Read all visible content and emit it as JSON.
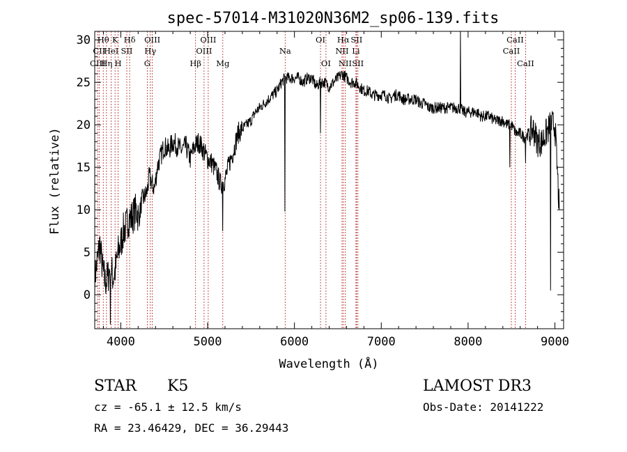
{
  "chart_data": {
    "type": "line",
    "title": "spec-57014-M31020N36M2_sp06-139.fits",
    "xlabel": "Wavelength (Å)",
    "ylabel": "Flux (relative)",
    "xlim": [
      3700,
      9100
    ],
    "ylim": [
      -4,
      31
    ],
    "xticks": [
      4000,
      5000,
      6000,
      7000,
      8000,
      9000
    ],
    "yticks": [
      0,
      5,
      10,
      15,
      20,
      25,
      30
    ],
    "grid": false,
    "series": [
      {
        "x": [
          3700,
          3730,
          3760,
          3790,
          3820,
          3850,
          3880,
          3910,
          3940,
          3970,
          4000,
          4030,
          4060,
          4090,
          4120,
          4150,
          4180,
          4210,
          4240,
          4270,
          4300,
          4330,
          4360,
          4390,
          4420,
          4450,
          4500,
          4550,
          4600,
          4650,
          4700,
          4750,
          4800,
          4850,
          4900,
          4950,
          5000,
          5050,
          5100,
          5150,
          5200,
          5250,
          5300,
          5350,
          5400,
          5450,
          5500,
          5550,
          5600,
          5650,
          5700,
          5750,
          5800,
          5850,
          5890,
          5950,
          6000,
          6050,
          6100,
          6150,
          6200,
          6250,
          6300,
          6350,
          6400,
          6450,
          6500,
          6550,
          6600,
          6650,
          6700,
          6750,
          6800,
          6850,
          6900,
          6950,
          7000,
          7050,
          7100,
          7150,
          7200,
          7250,
          7300,
          7350,
          7400,
          7450,
          7500,
          7550,
          7600,
          7650,
          7700,
          7750,
          7800,
          7850,
          7900,
          7950,
          8000,
          8050,
          8100,
          8150,
          8200,
          8250,
          8300,
          8350,
          8400,
          8450,
          8500,
          8550,
          8600,
          8650,
          8700,
          8750,
          8800,
          8850,
          8900,
          8950,
          9000,
          9050
        ],
        "values": [
          2,
          4,
          6,
          3,
          1.5,
          2,
          3.5,
          2,
          3,
          5,
          6,
          7.5,
          8,
          9,
          9,
          9.5,
          10,
          9,
          11,
          11.5,
          12,
          14,
          13,
          12.5,
          15,
          16,
          17.5,
          17,
          18,
          17.5,
          17,
          17.5,
          16,
          17.5,
          18,
          17,
          16,
          15.5,
          14.5,
          13,
          13.5,
          15.5,
          17,
          19,
          19.5,
          20,
          20.5,
          21.5,
          22,
          22.5,
          23,
          23.5,
          24,
          25,
          25.5,
          25.5,
          25.5,
          25.5,
          25,
          25.5,
          25.5,
          24.5,
          25,
          25,
          24.5,
          25,
          25.5,
          26,
          25.5,
          25,
          25,
          24.5,
          24,
          24,
          23.5,
          23.5,
          23.5,
          23.5,
          23,
          23.5,
          23.5,
          23,
          23,
          23,
          23,
          22.5,
          22.5,
          22,
          22,
          22,
          22,
          22,
          22,
          22,
          22,
          21.5,
          21.5,
          21.5,
          21.5,
          21,
          21,
          21,
          20.5,
          20.5,
          20.5,
          20,
          20,
          19,
          19,
          18.5,
          19,
          19.5,
          18,
          18,
          19,
          20,
          20,
          10
        ]
      }
    ],
    "emission_lines": [
      {
        "label": "Hθ",
        "x": 3798,
        "row": 0
      },
      {
        "label": "CII",
        "x": 3751,
        "row": 1
      },
      {
        "label": "CIII",
        "x": 3734,
        "row": 2
      },
      {
        "label": "K",
        "x": 3934,
        "row": 0
      },
      {
        "label": "HeI",
        "x": 3889,
        "row": 1
      },
      {
        "label": "Hη",
        "x": 3835,
        "row": 2
      },
      {
        "label": "Hδ",
        "x": 4102,
        "row": 0
      },
      {
        "label": "SII",
        "x": 4069,
        "row": 1
      },
      {
        "label": "H",
        "x": 3969,
        "row": 2
      },
      {
        "label": "OIII",
        "x": 4363,
        "row": 0
      },
      {
        "label": "Hγ",
        "x": 4340,
        "row": 1
      },
      {
        "label": "G",
        "x": 4305,
        "row": 2
      },
      {
        "label": "OIII",
        "x": 5007,
        "row": 0
      },
      {
        "label": "OIII",
        "x": 4959,
        "row": 1
      },
      {
        "label": "Hβ",
        "x": 4861,
        "row": 2
      },
      {
        "label": "Mg",
        "x": 5175,
        "row": 2
      },
      {
        "label": "Na",
        "x": 5893,
        "row": 1
      },
      {
        "label": "OI",
        "x": 6300,
        "row": 0
      },
      {
        "label": "OI",
        "x": 6363,
        "row": 2
      },
      {
        "label": "Hα",
        "x": 6563,
        "row": 0
      },
      {
        "label": "SII",
        "x": 6716,
        "row": 0
      },
      {
        "label": "NII",
        "x": 6548,
        "row": 1
      },
      {
        "label": "Li",
        "x": 6708,
        "row": 1
      },
      {
        "label": "NII",
        "x": 6584,
        "row": 2
      },
      {
        "label": "SII",
        "x": 6731,
        "row": 2
      },
      {
        "label": "CaII",
        "x": 8542,
        "row": 0
      },
      {
        "label": "CaII",
        "x": 8498,
        "row": 1
      },
      {
        "label": "CaII",
        "x": 8662,
        "row": 2
      }
    ]
  },
  "info": {
    "class": "STAR",
    "subclass": "K5",
    "survey": "LAMOST DR3",
    "cz": "cz = -65.1 ± 12.5 km/s",
    "obs_date": "Obs-Date: 20141222",
    "radec": "RA =  23.46429, DEC =  36.29443"
  },
  "colors": {
    "line": "#000000",
    "marker": "#b22222"
  }
}
